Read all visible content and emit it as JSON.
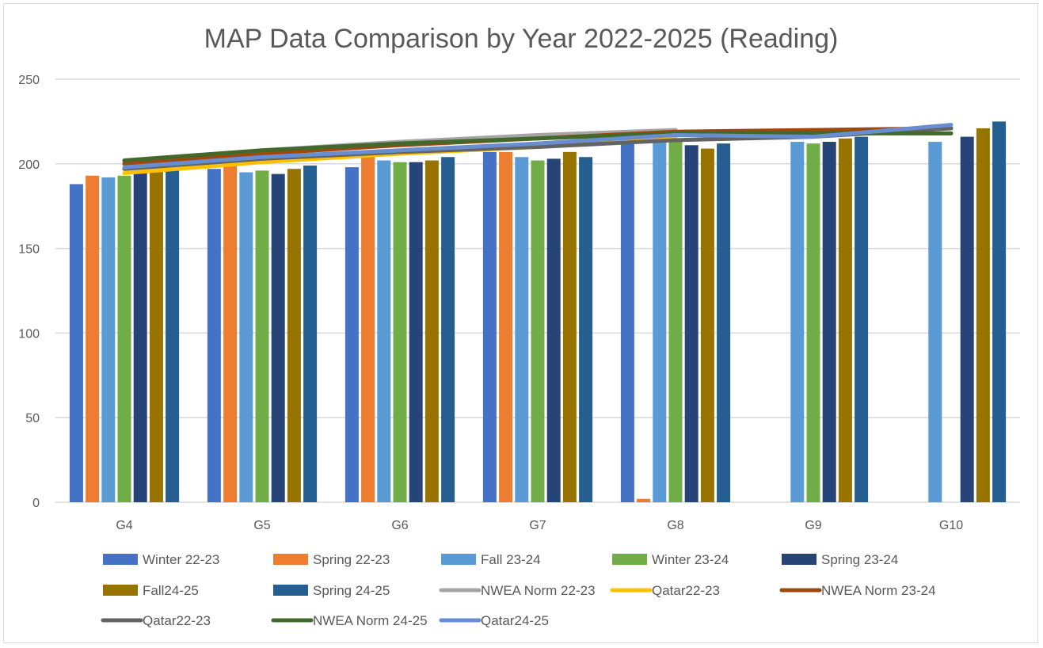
{
  "chart_data": {
    "type": "bar",
    "title": "MAP Data Comparison by Year 2022-2025 (Reading)",
    "xlabel": "",
    "ylabel": "",
    "ylim": [
      0,
      250
    ],
    "yticks": [
      0,
      50,
      100,
      150,
      200,
      250
    ],
    "grid": true,
    "legend_position": "bottom",
    "categories": [
      "G4",
      "G5",
      "G6",
      "G7",
      "G8",
      "G9",
      "G10"
    ],
    "bar_series": [
      {
        "name": "Winter 22-23",
        "color": "#4472C4",
        "values": [
          188,
          197,
          198,
          207,
          214,
          null,
          null
        ]
      },
      {
        "name": "Spring 22-23",
        "color": "#ED7D31",
        "values": [
          193,
          200,
          204,
          207,
          2,
          null,
          null
        ]
      },
      {
        "name": "Fall 23-24",
        "color": "#5B9BD5",
        "values": [
          192,
          195,
          202,
          204,
          213,
          213,
          213
        ]
      },
      {
        "name": "Winter 23-24",
        "color": "#70AD47",
        "values": [
          193,
          196,
          201,
          202,
          214,
          212,
          null
        ]
      },
      {
        "name": "Spring 23-24",
        "color": "#264478",
        "values": [
          195,
          194,
          201,
          203,
          211,
          213,
          216
        ]
      },
      {
        "name": "Fall24-25",
        "color": "#997300",
        "values": [
          196,
          197,
          202,
          207,
          209,
          215,
          221
        ]
      },
      {
        "name": "Spring 24-25",
        "color": "#255E91",
        "values": [
          197,
          199,
          204,
          204,
          212,
          216,
          225
        ]
      }
    ],
    "line_series": [
      {
        "name": "NWEA Norm 22-23",
        "color": "#A5A5A5",
        "values": [
          201,
          208,
          213,
          217,
          220,
          null,
          null
        ]
      },
      {
        "name": "Qatar22-23",
        "color": "#FFC000",
        "values": [
          194.5,
          201,
          206,
          210,
          215,
          null,
          null
        ]
      },
      {
        "name": "NWEA Norm 23-24",
        "color": "#9E480E",
        "values": [
          200,
          206,
          211,
          215,
          219,
          220,
          221
        ]
      },
      {
        "name": "Qatar22-23",
        "color": "#636363",
        "values": [
          197,
          203,
          207,
          210,
          214,
          216,
          221
        ]
      },
      {
        "name": "NWEA Norm 24-25",
        "color": "#43682B",
        "values": [
          202,
          208,
          212,
          215,
          218,
          218,
          218
        ]
      },
      {
        "name": "Qatar24-25",
        "color": "#698ED0",
        "values": [
          198,
          204,
          208,
          212,
          217,
          216,
          223
        ]
      }
    ]
  }
}
